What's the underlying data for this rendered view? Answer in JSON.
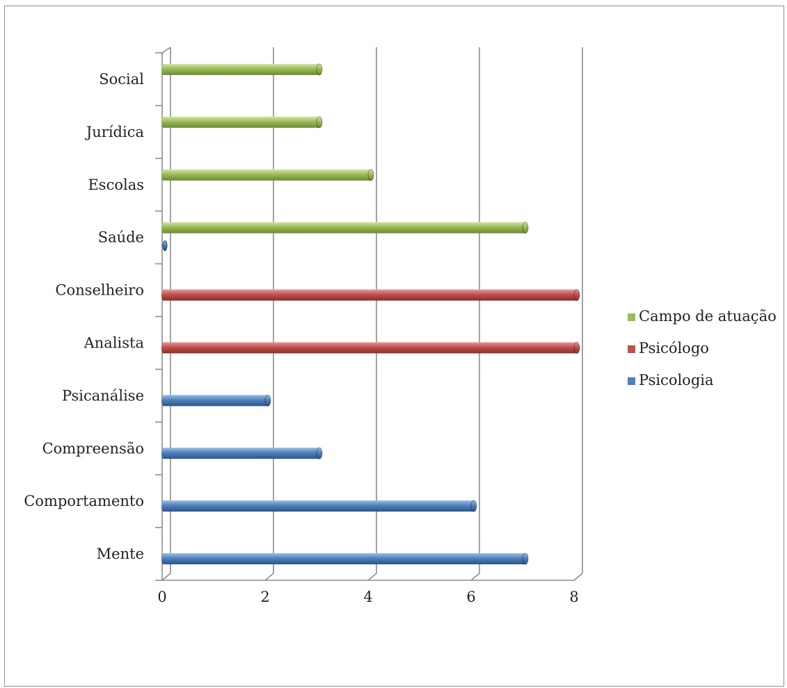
{
  "chart_data": {
    "type": "bar",
    "orientation": "horizontal",
    "categories": [
      "Mente",
      "Comportamento",
      "Compreensão",
      "Psicanálise",
      "Analista",
      "Conselheiro",
      "Saúde",
      "Escolas",
      "Jurídica",
      "Social"
    ],
    "series": [
      {
        "name": "Psicologia",
        "color": "#4f81bd",
        "values": [
          7,
          6,
          3,
          2,
          0,
          0,
          0,
          0,
          0,
          0
        ]
      },
      {
        "name": "Psicólogo",
        "color": "#c0504d",
        "values": [
          0,
          0,
          0,
          0,
          8,
          8,
          0,
          0,
          0,
          0
        ]
      },
      {
        "name": "Campo de atuação",
        "color": "#9bbb59",
        "values": [
          0,
          0,
          0,
          0,
          0,
          0,
          7,
          4,
          3,
          3
        ]
      }
    ],
    "xlim": [
      0,
      8
    ],
    "xticks": [
      0,
      2,
      4,
      6,
      8
    ],
    "legend": [
      "Campo de atuação",
      "Psicólogo",
      "Psicologia"
    ],
    "legend_position": "right",
    "grid": true
  }
}
